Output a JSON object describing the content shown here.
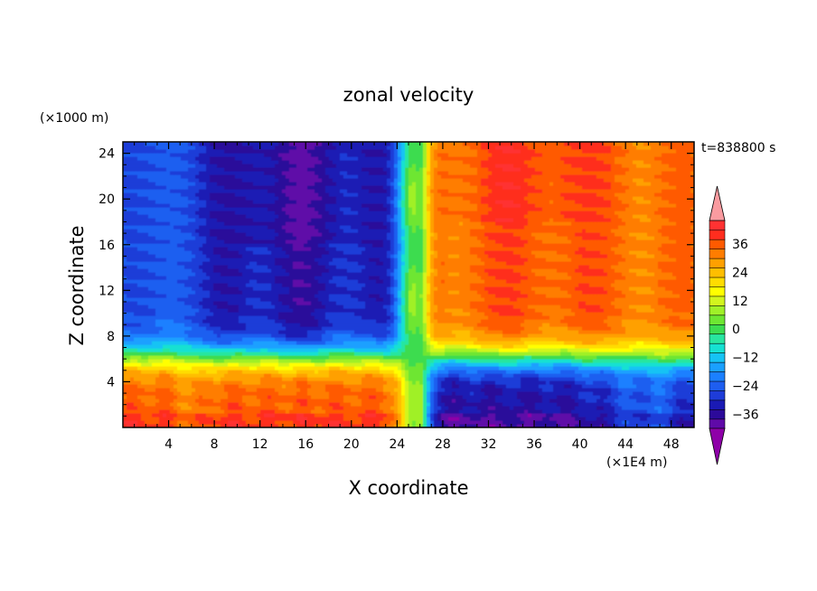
{
  "chart_data": {
    "type": "heatmap",
    "title": "zonal velocity",
    "xlabel": "X coordinate",
    "ylabel": "Z coordinate",
    "x_unit": "(×1E4 m)",
    "y_unit": "(×1000 m)",
    "time_label": "t=838800  s",
    "xlim": [
      0,
      50
    ],
    "ylim": [
      0,
      25
    ],
    "x_ticks": [
      "4",
      "8",
      "12",
      "16",
      "20",
      "24",
      "28",
      "32",
      "36",
      "40",
      "44",
      "48"
    ],
    "y_ticks": [
      "4",
      "8",
      "12",
      "16",
      "20",
      "24"
    ],
    "colorbar": {
      "labels": [
        "36",
        "24",
        "12",
        "0",
        "−12",
        "−24",
        "−36"
      ],
      "levels_min": -42,
      "levels_max": 42,
      "step": 4,
      "colors": [
        "#8e00a8",
        "#5f0aa8",
        "#2c0a9a",
        "#1a1ab4",
        "#1e3cd8",
        "#1e5ef0",
        "#1b80ff",
        "#1aa0ff",
        "#16c3f4",
        "#16e1d2",
        "#28e6a0",
        "#3cdc50",
        "#6ee632",
        "#a0f028",
        "#d2f51e",
        "#ffff00",
        "#ffdc00",
        "#ffbe00",
        "#ffa000",
        "#ff7d00",
        "#ff5a00",
        "#ff2d1e",
        "#ff3232",
        "#fa9ba0"
      ]
    },
    "grid": false,
    "legend_position": "right"
  }
}
